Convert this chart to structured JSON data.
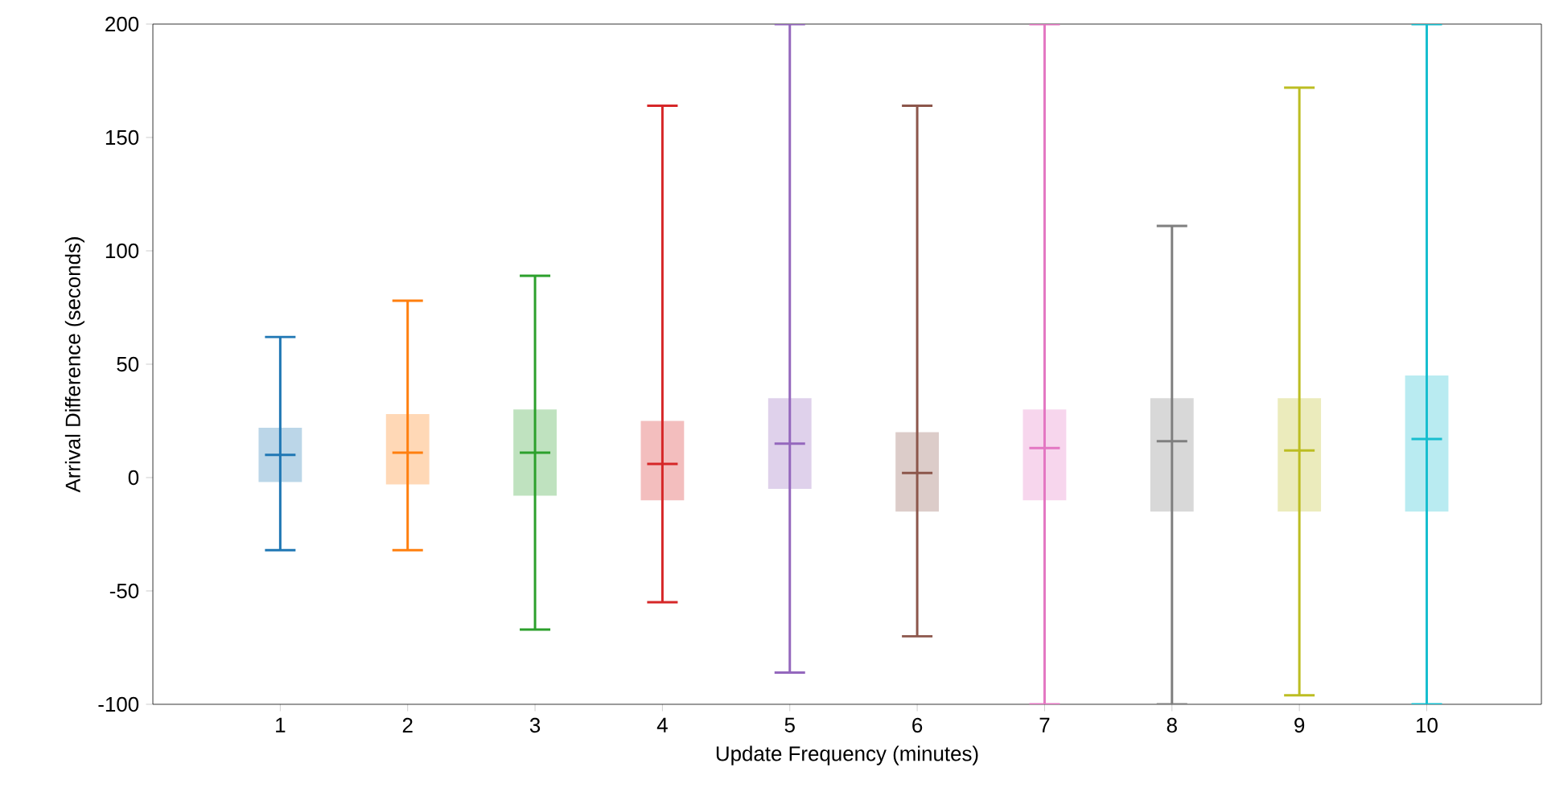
{
  "chart_data": {
    "type": "box",
    "xlabel": "Update Frequency (minutes)",
    "ylabel": "Arrival Difference (seconds)",
    "categories": [
      "1",
      "2",
      "3",
      "4",
      "5",
      "6",
      "7",
      "8",
      "9",
      "10"
    ],
    "colors": [
      "#1f77b4",
      "#ff7f0e",
      "#2ca02c",
      "#d62728",
      "#9467bd",
      "#8c564b",
      "#e377c2",
      "#7f7f7f",
      "#bcbd22",
      "#17becf"
    ],
    "boxes": [
      {
        "low": -32,
        "q1": -2,
        "median": 10,
        "q3": 22,
        "high": 62
      },
      {
        "low": -32,
        "q1": -3,
        "median": 11,
        "q3": 28,
        "high": 78
      },
      {
        "low": -67,
        "q1": -8,
        "median": 11,
        "q3": 30,
        "high": 89
      },
      {
        "low": -55,
        "q1": -10,
        "median": 6,
        "q3": 25,
        "high": 164
      },
      {
        "low": -86,
        "q1": -5,
        "median": 15,
        "q3": 35,
        "high": 200
      },
      {
        "low": -70,
        "q1": -15,
        "median": 2,
        "q3": 20,
        "high": 164
      },
      {
        "low": -100,
        "q1": -10,
        "median": 13,
        "q3": 30,
        "high": 200
      },
      {
        "low": -100,
        "q1": -15,
        "median": 16,
        "q3": 35,
        "high": 111
      },
      {
        "low": -96,
        "q1": -15,
        "median": 12,
        "q3": 35,
        "high": 172
      },
      {
        "low": -100,
        "q1": -15,
        "median": 17,
        "q3": 45,
        "high": 200
      }
    ],
    "ylim": [
      -100,
      200
    ],
    "yticks": [
      -100,
      -50,
      0,
      50,
      100,
      150,
      200
    ]
  }
}
